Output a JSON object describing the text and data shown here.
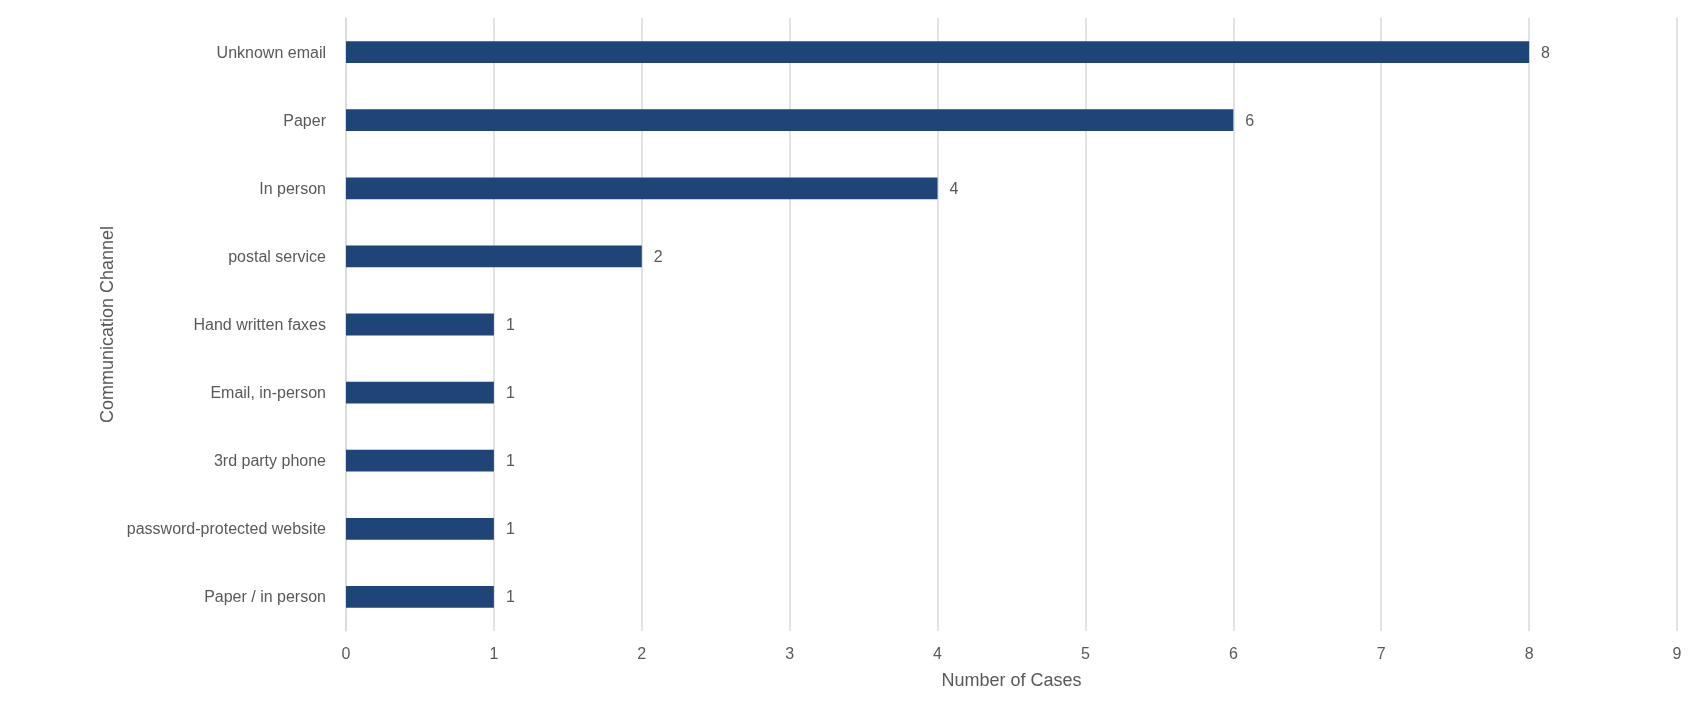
{
  "chart_data": {
    "type": "bar",
    "orientation": "horizontal",
    "xlabel": "Number of Cases",
    "ylabel": "Communication Channel",
    "categories": [
      "Unknown email",
      "Paper",
      "In person",
      "postal service",
      "Hand written faxes",
      "Email, in-person",
      "3rd party phone",
      "password-protected website",
      "Paper / in person"
    ],
    "values": [
      8,
      6,
      4,
      2,
      1,
      1,
      1,
      1,
      1
    ],
    "color": "#1f4477",
    "xlim": [
      0,
      9
    ],
    "xticks": [
      0,
      1,
      2,
      3,
      4,
      5,
      6,
      7,
      8,
      9
    ],
    "grid": "x",
    "data_labels": true
  }
}
